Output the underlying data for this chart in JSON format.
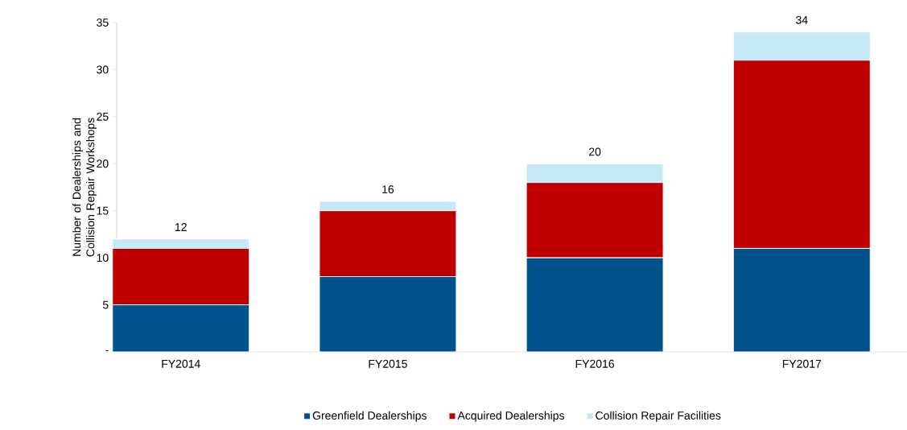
{
  "chart_data": {
    "type": "bar",
    "stacked": true,
    "ylabel": "Number of Dealerships and Collision Repair Workshops",
    "categories": [
      "FY2014",
      "FY2015",
      "FY2016",
      "FY2017"
    ],
    "series": [
      {
        "name": "Greenfield Dealerships",
        "color": "#00528a",
        "values": [
          5,
          8,
          10,
          11
        ]
      },
      {
        "name": "Acquired Dealerships",
        "color": "#c00000",
        "values": [
          6,
          7,
          8,
          20
        ]
      },
      {
        "name": "Collision Repair Facilities",
        "color": "#c6e9f7",
        "values": [
          1,
          1,
          2,
          3
        ]
      }
    ],
    "totals": [
      "12",
      "16",
      "20",
      "34"
    ],
    "ylim": [
      0,
      35
    ],
    "yticks": [
      {
        "value": 0,
        "label": "-"
      },
      5,
      10,
      15,
      20,
      25,
      30,
      35
    ],
    "legend": "bottom"
  }
}
